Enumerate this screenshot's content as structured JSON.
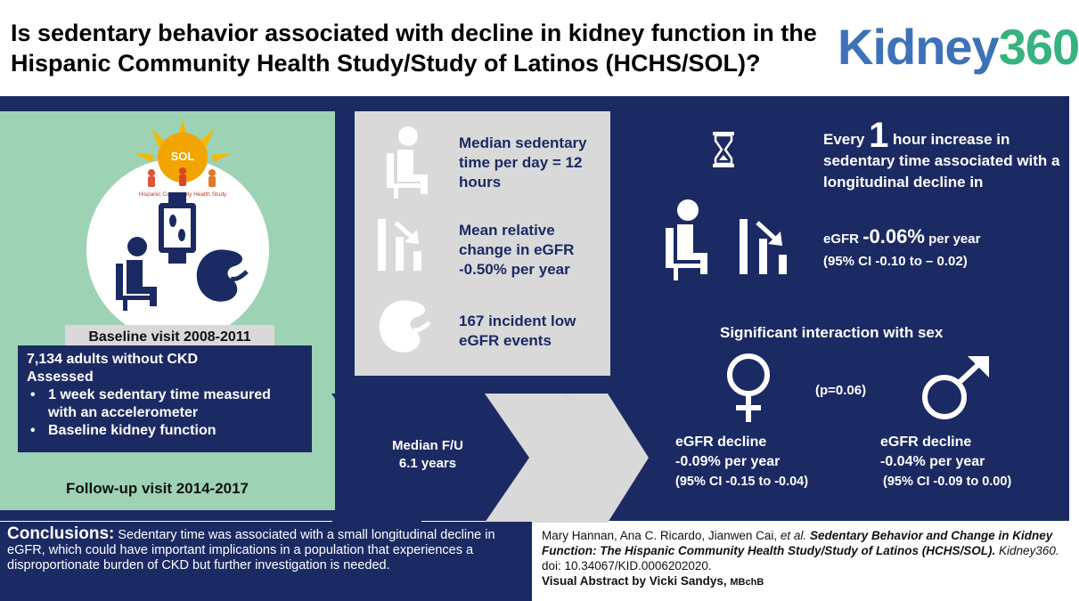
{
  "header": {
    "title": "Is sedentary behavior associated with decline in kidney function in the Hispanic Community Health Study/Study of Latinos (HCHS/SOL)?",
    "logo_part1": "Kidney",
    "logo_part2": "360"
  },
  "baseline": {
    "label": "Baseline visit 2008-2011",
    "line1": "7,134 adults without CKD",
    "line2": "Assessed",
    "bullets": [
      "1 week sedentary time measured with an accelerometer",
      "Baseline kidney function"
    ],
    "followup": "Follow-up visit 2014-2017",
    "sol_logo_text": "SOL",
    "sol_logo_sub": "Hispanic Community Health Study"
  },
  "stats": {
    "sedentary": "Median sedentary time per day = 12 hours",
    "egfr_change": "Mean relative change in eGFR -0.50% per year",
    "events": "167 incident low eGFR events",
    "followup_label": "Median F/U",
    "followup_years": "6.1 years"
  },
  "results": {
    "every_pre": "Every",
    "every_num": "1",
    "every_post": "hour increase in sedentary time associated with a longitudinal decline in",
    "egfr_label": "eGFR",
    "egfr_value": "-0.06%",
    "egfr_unit": "per year",
    "ci": "(95% CI -0.10 to – 0.02)",
    "sex_heading": "Significant interaction with sex",
    "p_value": "(p=0.06)",
    "female_l1": "eGFR decline",
    "female_l2": "-0.09% per year",
    "female_l3": "(95% CI -0.15 to -0.04)",
    "male_l1": "eGFR decline",
    "male_l2": "-0.04% per year",
    "male_l3": "(95% CI -0.09 to 0.00)"
  },
  "conclusion": {
    "heading": "Conclusions:",
    "text": "Sedentary time was associated with a small longitudinal decline in eGFR, which could have important implications in a population that experiences a disproportionate burden of CKD but further investigation is needed."
  },
  "citation": {
    "authors": "Mary Hannan, Ana C. Ricardo, Jianwen Cai,",
    "etal": "et al.",
    "title": "Sedentary Behavior and Change in Kidney Function: The Hispanic Community Health Study/Study of Latinos (HCHS/SOL).",
    "journal": "Kidney360.",
    "doi": "doi: 10.34067/KID.0006202020.",
    "credit": "Visual Abstract by Vicki Sandys,",
    "credit_suffix": "MBchB"
  },
  "colors": {
    "navy": "#1b2a63",
    "green": "#9ed2b4",
    "gray": "#d9d9d9",
    "logo_blue": "#3d72b8",
    "logo_green": "#36b37e"
  },
  "icons": [
    "sol-sun-logo",
    "smartwatch-icon",
    "seated-person-icon",
    "kidney-icon",
    "hourglass-icon",
    "declining-bars-icon",
    "female-symbol-icon",
    "male-symbol-icon"
  ]
}
